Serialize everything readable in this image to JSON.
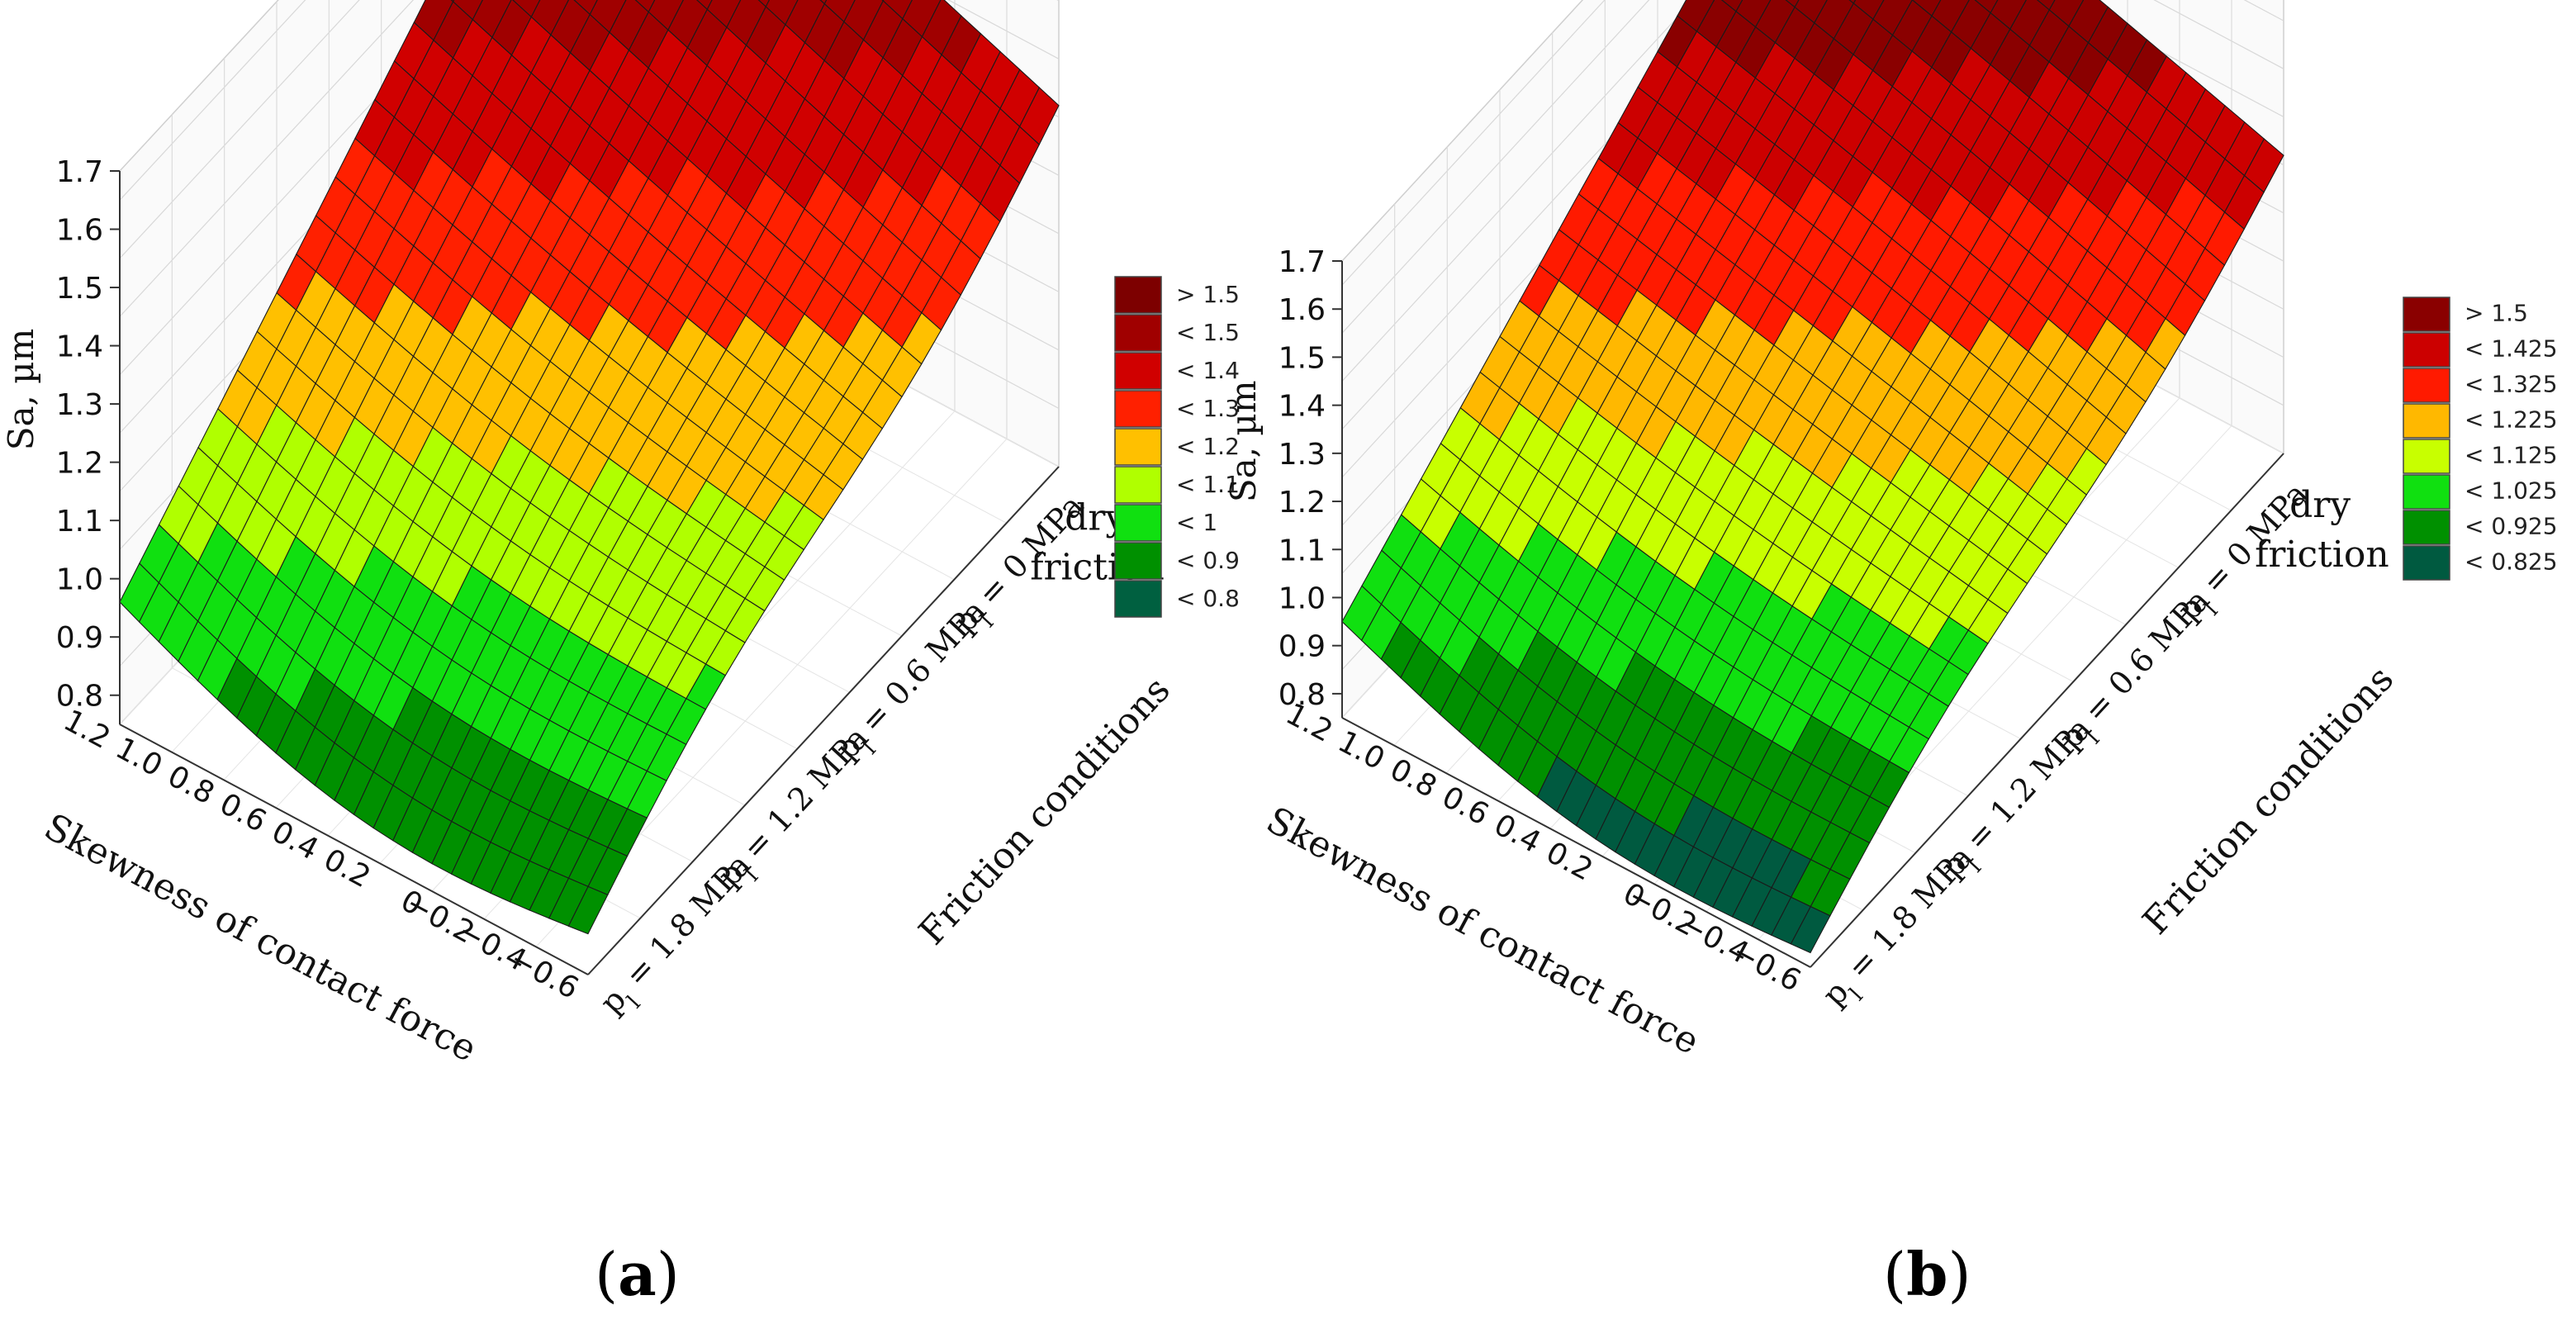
{
  "panel_labels": [
    {
      "open": "(",
      "letter": "a",
      "close": ")"
    },
    {
      "open": "(",
      "letter": "b",
      "close": ")"
    }
  ],
  "chart_data": [
    {
      "type": "surface",
      "panel": "a",
      "z_label": "Sa, µm",
      "z_ticks": [
        "1.7",
        "1.6",
        "1.5",
        "1.4",
        "1.3",
        "1.2",
        "1.1",
        "1.0",
        "0.9",
        "0.8"
      ],
      "zlim": [
        0.75,
        1.7
      ],
      "x_label": "Skewness of contact force",
      "x_ticks": [
        "1.2",
        "1.0",
        "0.8",
        "0.6",
        "0.4",
        "0.2",
        "0",
        "−0.2",
        "−0.4",
        "−0.6"
      ],
      "xlim": [
        -0.6,
        1.2
      ],
      "y_label": "Friction conditions",
      "y_ticks": [
        {
          "p": "p",
          "sub": "l",
          "value": " = 1.8 MPa"
        },
        {
          "p": "p",
          "sub": "l",
          "value": " = 1.2 MPa"
        },
        {
          "p": "p",
          "sub": "l",
          "value": " = 0.6 MPa"
        },
        {
          "p": "p",
          "sub": "l",
          "value": " = 0 MPa"
        }
      ],
      "y_tick_dry": [
        "dry",
        "friction"
      ],
      "legend": [
        "> 1.5",
        "< 1.5",
        "< 1.4",
        "< 1.3",
        "< 1.2",
        "< 1.1",
        "< 1",
        "< 0.9",
        "< 0.8"
      ],
      "legend_colors": [
        "#7d0000",
        "#a00000",
        "#d00000",
        "#ff2000",
        "#ffc000",
        "#b0ff00",
        "#10e010",
        "#009000",
        "#006040"
      ],
      "levels": [
        0.8,
        0.9,
        1.0,
        1.1,
        1.2,
        1.3,
        1.4,
        1.5
      ],
      "corners": {
        "front_high_skew": 0.96,
        "front_low_skew": 0.82,
        "dry_high_skew": 1.68,
        "dry_low_skew": 1.37,
        "peak": 1.68
      }
    },
    {
      "type": "surface",
      "panel": "b",
      "z_label": "Sa, µm",
      "z_ticks": [
        "1.7",
        "1.6",
        "1.5",
        "1.4",
        "1.3",
        "1.2",
        "1.1",
        "1.0",
        "0.9",
        "0.8"
      ],
      "zlim": [
        0.75,
        1.7
      ],
      "x_label": "Skewness of contact force",
      "x_ticks": [
        "1.2",
        "1.0",
        "0.8",
        "0.6",
        "0.4",
        "0.2",
        "0",
        "−0.2",
        "−0.4",
        "−0.6"
      ],
      "xlim": [
        -0.6,
        1.2
      ],
      "y_label": "Friction conditions",
      "y_ticks": [
        {
          "p": "p",
          "sub": "l",
          "value": " = 1.8 MPa"
        },
        {
          "p": "p",
          "sub": "l",
          "value": " = 1.2 MPa"
        },
        {
          "p": "p",
          "sub": "l",
          "value": " = 0.6 MPa"
        },
        {
          "p": "p",
          "sub": "l",
          "value": " = 0 MPa"
        }
      ],
      "y_tick_dry": [
        "dry",
        "friction"
      ],
      "legend": [
        "> 1.5",
        "< 1.425",
        "< 1.325",
        "< 1.225",
        "< 1.125",
        "< 1.025",
        "< 0.925",
        "< 0.825"
      ],
      "legend_colors": [
        "#8a0000",
        "#cc0000",
        "#ff1a00",
        "#ffb800",
        "#c8ff00",
        "#10e010",
        "#009000",
        "#005a40"
      ],
      "levels": [
        0.825,
        0.925,
        1.025,
        1.125,
        1.225,
        1.325,
        1.425,
        1.5
      ],
      "corners": {
        "front_high_skew": 0.95,
        "front_low_skew": 0.78,
        "dry_high_skew": 1.66,
        "dry_low_skew": 1.37,
        "peak": 1.68
      }
    }
  ]
}
